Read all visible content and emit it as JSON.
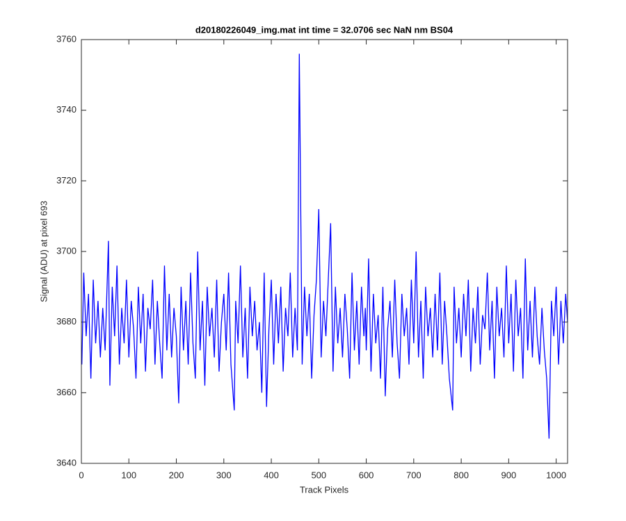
{
  "chart_data": {
    "type": "line",
    "title": "d20180226049_img.mat int time = 32.0706 sec  NaN nm BS04",
    "x_label": "Track Pixels",
    "y_label": "Signal (ADU) at pixel 693",
    "xlim": [
      0,
      1024
    ],
    "xticks": [
      0,
      100,
      200,
      300,
      400,
      500,
      600,
      700,
      800,
      900,
      1000
    ],
    "ylim": [
      3640,
      3760
    ],
    "yticks": [
      3640,
      3660,
      3680,
      3700,
      3720,
      3740,
      3760
    ],
    "grid": false,
    "series": [
      {
        "color": "#0000ff",
        "x": [
          1,
          5,
          10,
          15,
          20,
          25,
          30,
          35,
          40,
          45,
          50,
          57,
          60,
          65,
          70,
          75,
          80,
          85,
          90,
          95,
          100,
          105,
          110,
          115,
          120,
          125,
          130,
          135,
          140,
          145,
          150,
          155,
          160,
          165,
          170,
          175,
          180,
          185,
          190,
          195,
          200,
          205,
          210,
          215,
          220,
          225,
          230,
          235,
          240,
          245,
          250,
          255,
          260,
          265,
          270,
          275,
          280,
          285,
          290,
          295,
          300,
          305,
          310,
          315,
          322,
          325,
          330,
          335,
          340,
          345,
          350,
          355,
          360,
          365,
          370,
          375,
          380,
          385,
          390,
          395,
          400,
          405,
          410,
          415,
          420,
          425,
          430,
          435,
          440,
          445,
          450,
          455,
          459,
          465,
          470,
          475,
          480,
          485,
          490,
          495,
          500,
          505,
          510,
          515,
          525,
          530,
          535,
          540,
          545,
          550,
          555,
          560,
          565,
          570,
          575,
          580,
          585,
          590,
          595,
          598,
          600,
          605,
          610,
          615,
          620,
          625,
          630,
          635,
          640,
          645,
          650,
          655,
          660,
          665,
          670,
          675,
          680,
          685,
          690,
          695,
          700,
          705,
          710,
          715,
          720,
          725,
          730,
          735,
          740,
          745,
          750,
          755,
          760,
          765,
          770,
          775,
          782,
          785,
          790,
          795,
          800,
          805,
          810,
          815,
          820,
          825,
          830,
          835,
          840,
          845,
          850,
          855,
          860,
          865,
          870,
          875,
          880,
          885,
          890,
          895,
          900,
          905,
          910,
          915,
          920,
          925,
          930,
          935,
          940,
          945,
          950,
          955,
          960,
          965,
          970,
          975,
          980,
          985,
          990,
          995,
          1000,
          1005,
          1010,
          1015,
          1020,
          1024
        ],
        "values": [
          3668,
          3694,
          3676,
          3688,
          3664,
          3692,
          3674,
          3686,
          3670,
          3684,
          3672,
          3703,
          3662,
          3690,
          3676,
          3696,
          3668,
          3684,
          3674,
          3692,
          3670,
          3686,
          3678,
          3664,
          3690,
          3674,
          3688,
          3666,
          3684,
          3678,
          3692,
          3668,
          3686,
          3674,
          3664,
          3696,
          3672,
          3688,
          3670,
          3684,
          3676,
          3657,
          3690,
          3672,
          3686,
          3668,
          3694,
          3674,
          3664,
          3700,
          3672,
          3686,
          3662,
          3690,
          3676,
          3684,
          3670,
          3692,
          3666,
          3680,
          3688,
          3672,
          3694,
          3668,
          3655,
          3686,
          3674,
          3696,
          3670,
          3684,
          3664,
          3690,
          3676,
          3686,
          3672,
          3680,
          3660,
          3694,
          3656,
          3678,
          3692,
          3668,
          3688,
          3674,
          3690,
          3666,
          3684,
          3676,
          3694,
          3670,
          3684,
          3672,
          3756,
          3668,
          3690,
          3676,
          3688,
          3664,
          3682,
          3692,
          3712,
          3670,
          3686,
          3676,
          3708,
          3666,
          3690,
          3674,
          3684,
          3670,
          3688,
          3678,
          3664,
          3694,
          3672,
          3686,
          3668,
          3690,
          3676,
          3684,
          3672,
          3698,
          3666,
          3688,
          3674,
          3682,
          3664,
          3690,
          3659,
          3678,
          3686,
          3670,
          3692,
          3674,
          3664,
          3688,
          3676,
          3684,
          3668,
          3692,
          3674,
          3700,
          3670,
          3686,
          3664,
          3690,
          3676,
          3684,
          3670,
          3688,
          3672,
          3694,
          3668,
          3686,
          3676,
          3664,
          3655,
          3690,
          3674,
          3684,
          3670,
          3688,
          3676,
          3692,
          3666,
          3684,
          3674,
          3690,
          3668,
          3682,
          3678,
          3694,
          3672,
          3686,
          3664,
          3690,
          3676,
          3684,
          3670,
          3696,
          3674,
          3688,
          3666,
          3692,
          3676,
          3684,
          3664,
          3698,
          3672,
          3686,
          3670,
          3690,
          3676,
          3668,
          3684,
          3672,
          3664,
          3647,
          3686,
          3676,
          3690,
          3668,
          3686,
          3674,
          3688,
          3680
        ]
      }
    ]
  }
}
